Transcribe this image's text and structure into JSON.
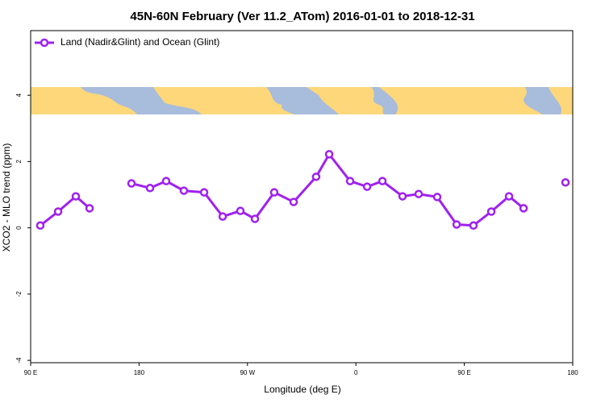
{
  "chart_data": {
    "type": "line",
    "title": "45N-60N February (Ver 11.2_ATom)   2016-01-01 to 2018-12-31",
    "xlabel": "Longitude (deg E)",
    "ylabel": "XCO2 - MLO trend (ppm)",
    "xlim": [
      90,
      540
    ],
    "ylim": [
      -4.07,
      5.95
    ],
    "xticks": [
      {
        "value": 90,
        "label": "90 E"
      },
      180,
      {
        "value": 270,
        "label": "90 W"
      },
      {
        "value": 360,
        "label": "0"
      },
      {
        "value": 450,
        "label": "90 E"
      },
      180
    ],
    "yticks": [
      4,
      2,
      0,
      -2,
      -4
    ],
    "legend": "top-left",
    "series": [
      {
        "name": "Land (Nadir&Glint) and Ocean (Glint)",
        "color": "#a020f0",
        "x": [
          98.0,
          112.8,
          127.5,
          138.9,
          null,
          173.7,
          189.1,
          202.5,
          217.2,
          234.0,
          249.4,
          264.1,
          276.2,
          292.2,
          308.3,
          327.0,
          337.8,
          355.2,
          369.3,
          382.0,
          398.7,
          412.1,
          427.5,
          443.6,
          457.6,
          472.4,
          487.1,
          499.2,
          null,
          534.0
        ],
        "values": [
          0.07,
          0.49,
          0.95,
          0.59,
          null,
          1.34,
          1.2,
          1.41,
          1.12,
          1.07,
          0.34,
          0.51,
          0.27,
          1.07,
          0.78,
          1.54,
          2.22,
          1.41,
          1.24,
          1.41,
          0.95,
          1.02,
          0.93,
          0.1,
          0.07,
          0.49,
          0.95,
          0.59,
          null,
          1.37
        ]
      }
    ]
  }
}
